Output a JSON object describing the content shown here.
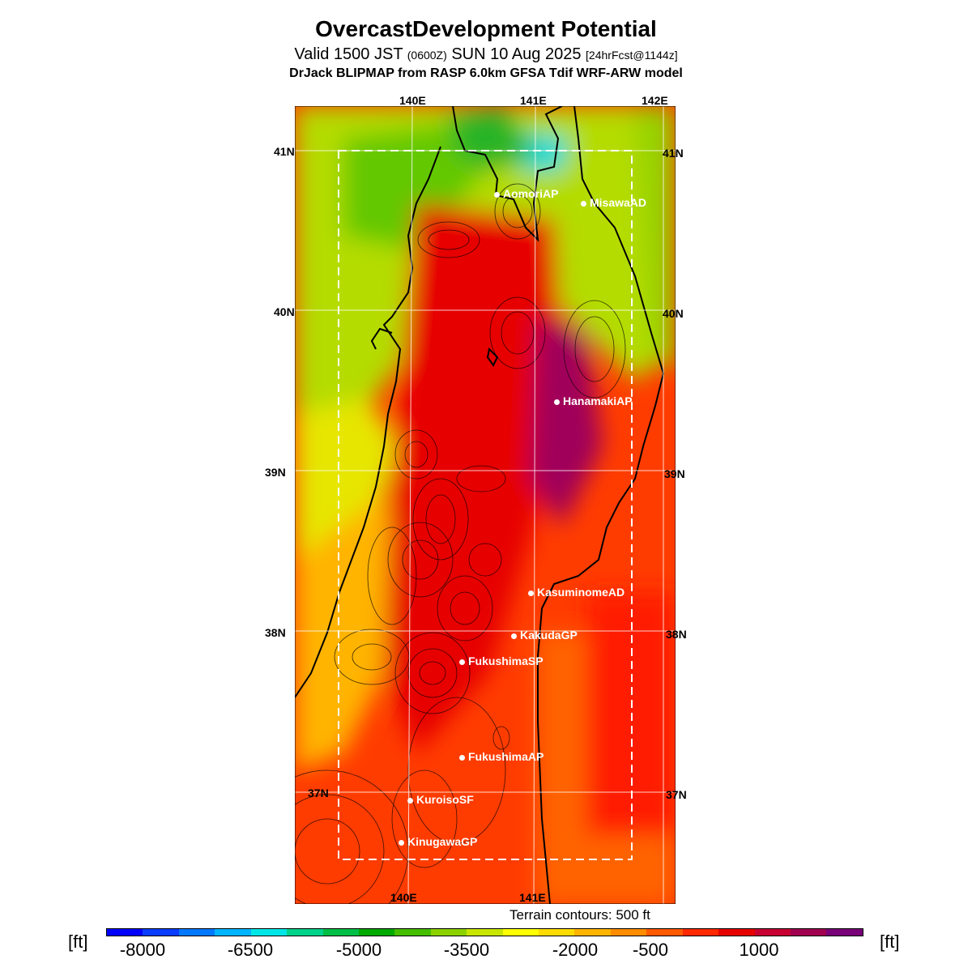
{
  "header": {
    "title": "OvercastDevelopment Potential",
    "valid_prefix": "Valid 1500 JST",
    "valid_utc": "(0600Z)",
    "valid_date": "SUN 10 Aug 2025",
    "forecast": "[24hrFcst@1144z]",
    "model": "DrJack BLIPMAP from RASP 6.0km GFSA Tdif WRF-ARW model"
  },
  "axes": {
    "top_lon": [
      "140E",
      "141E",
      "142E"
    ],
    "bottom_lon": [
      "140E",
      "141E"
    ],
    "left_lat": [
      "41N",
      "40N",
      "39N",
      "38N",
      "37N"
    ],
    "right_lat": [
      "41N",
      "40N",
      "39N",
      "38N",
      "37N"
    ]
  },
  "stations": [
    {
      "name": "AomoriAP"
    },
    {
      "name": "MisawaAD"
    },
    {
      "name": "HanamakiAP"
    },
    {
      "name": "KasuminomeAD"
    },
    {
      "name": "KakudaGP"
    },
    {
      "name": "FukushimaSP"
    },
    {
      "name": "FukushimaAP"
    },
    {
      "name": "KuroisoSF"
    },
    {
      "name": "KinugawaGP"
    }
  ],
  "legend": {
    "terrain_note": "Terrain contours: 500 ft",
    "unit": "[ft]",
    "labels": [
      "-8000",
      "-6500",
      "-5000",
      "-3500",
      "-2000",
      "-500",
      "1000"
    ],
    "colors": [
      "#0000ff",
      "#0a3cff",
      "#0078ff",
      "#00b4ff",
      "#00e6e6",
      "#00d28c",
      "#00be46",
      "#00aa00",
      "#46be00",
      "#8cd200",
      "#c8e600",
      "#ffff00",
      "#ffdc00",
      "#ffb400",
      "#ff8c00",
      "#ff5a00",
      "#ff2800",
      "#e60000",
      "#c80032",
      "#a00050",
      "#780078"
    ]
  }
}
